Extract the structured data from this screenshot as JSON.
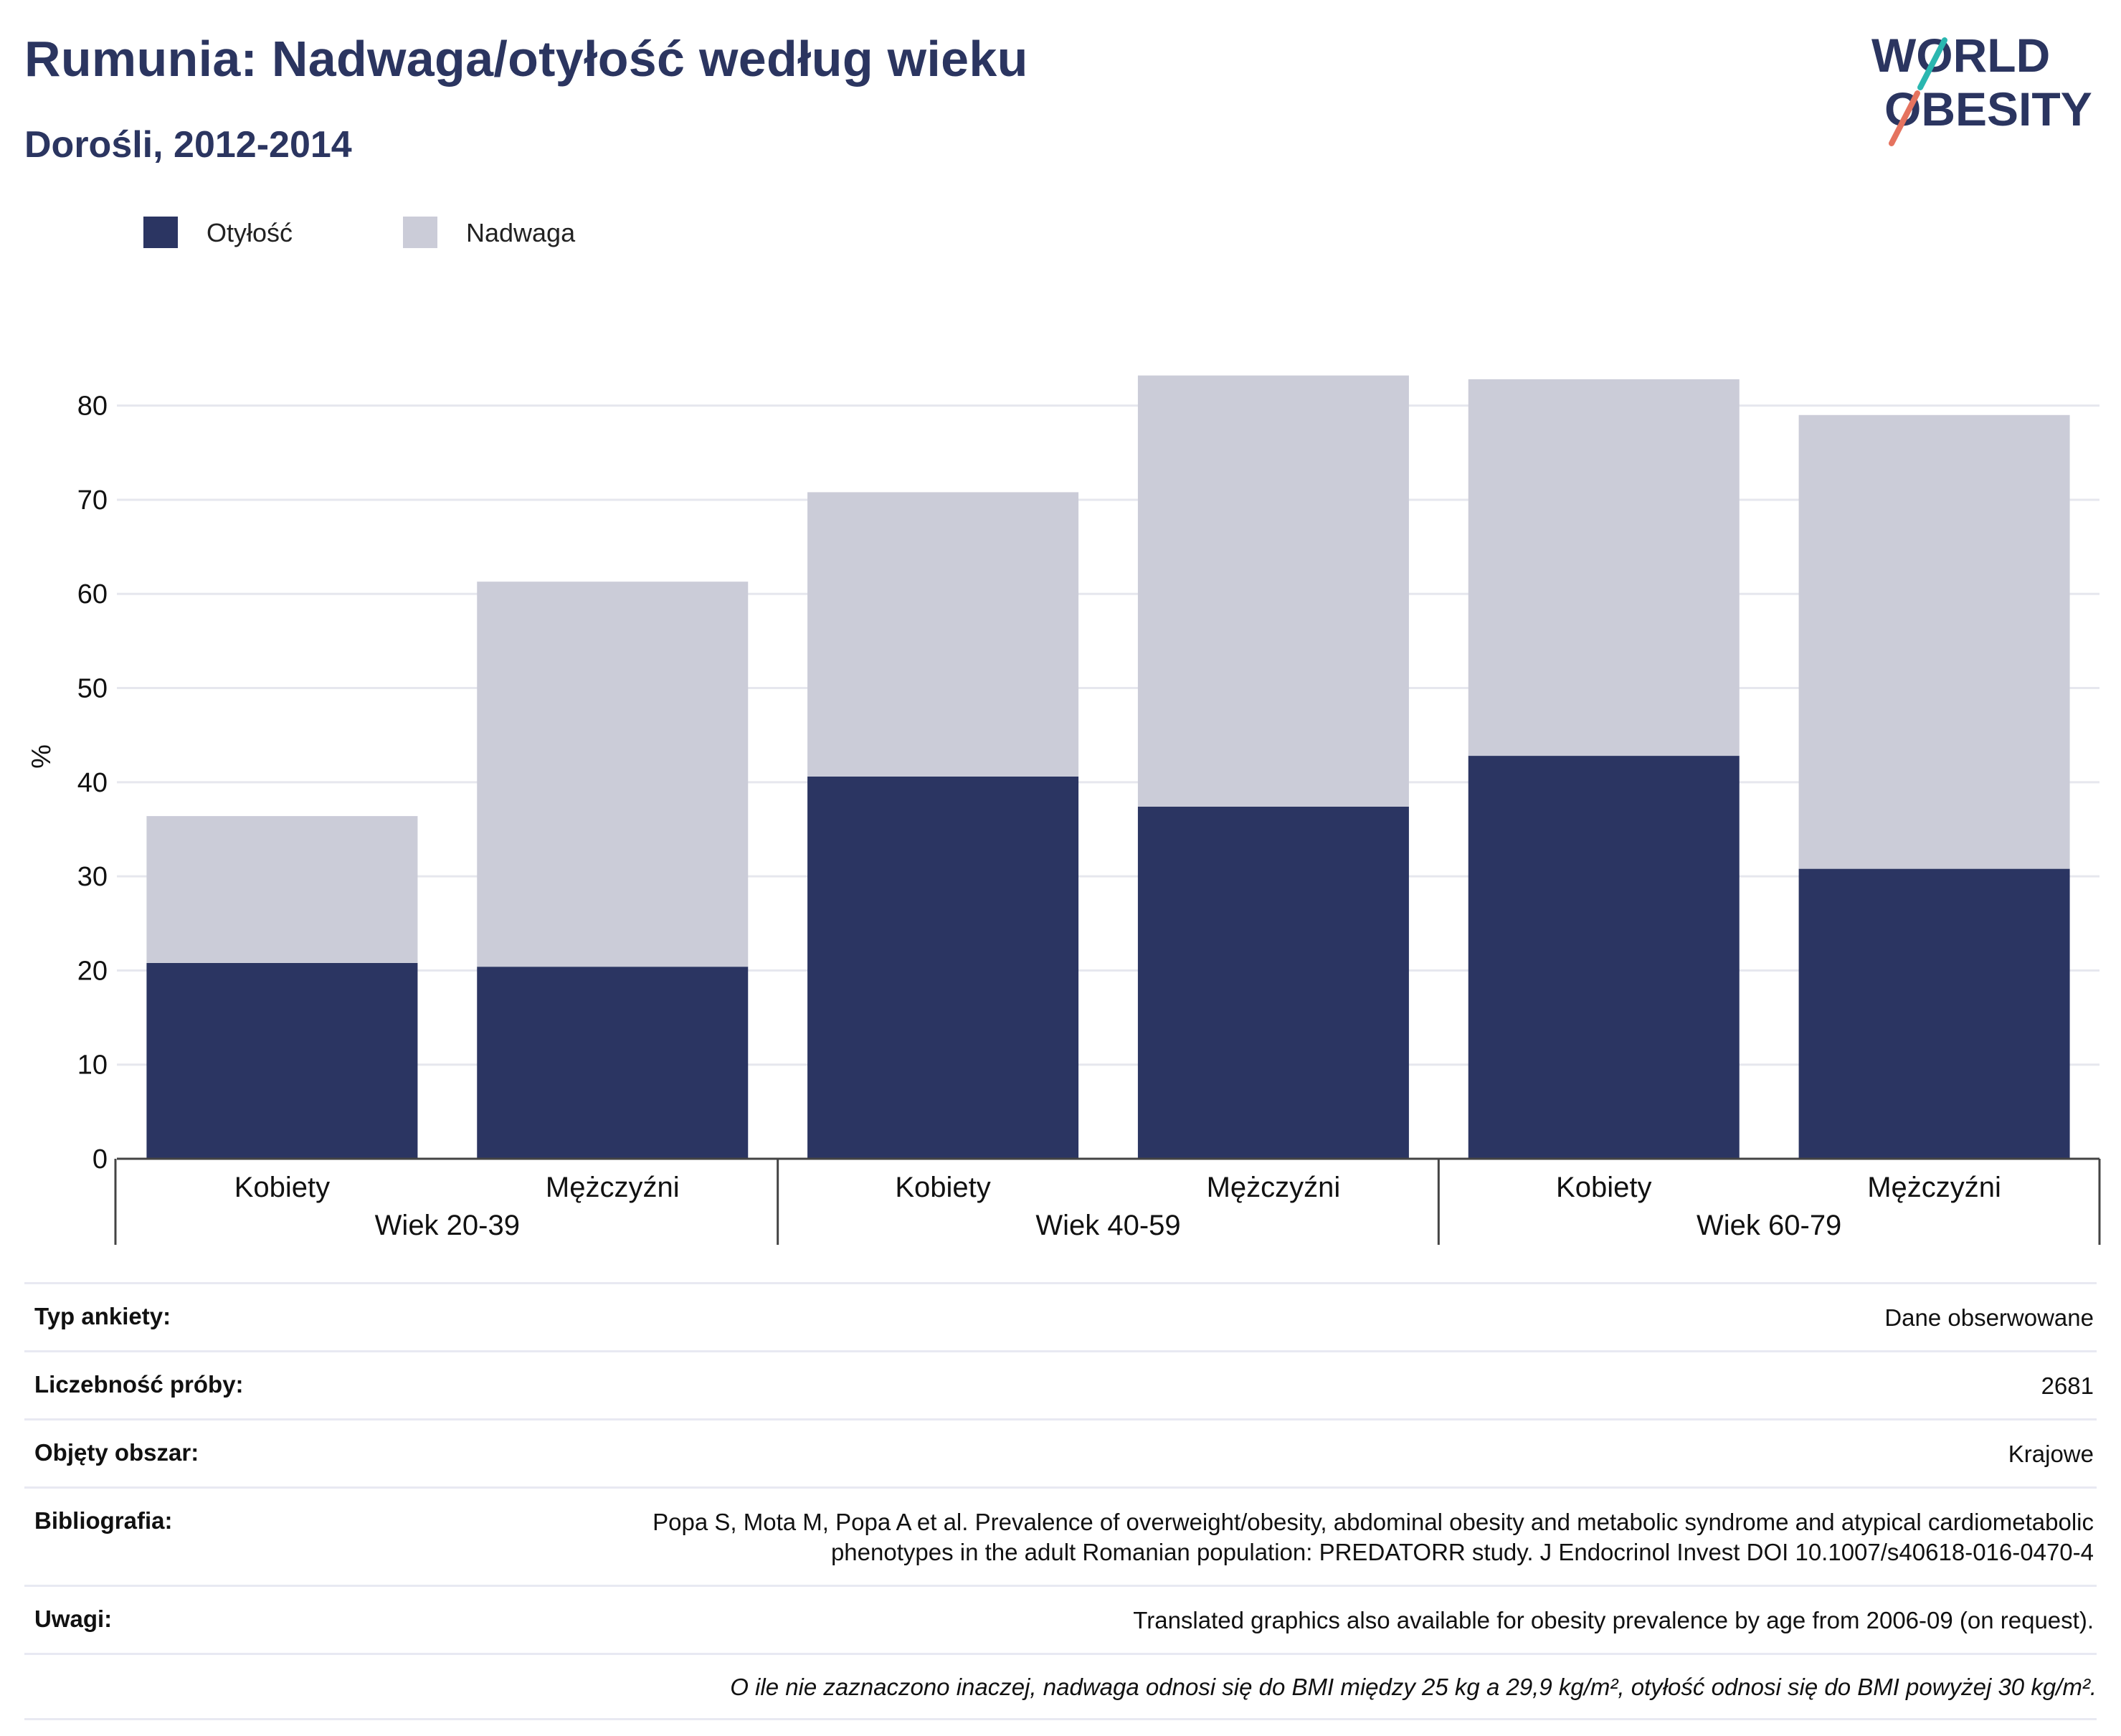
{
  "header": {
    "title": "Rumunia: Nadwaga/otyłość według wieku",
    "subtitle": "Dorośli, 2012-2014"
  },
  "logo": {
    "line1": "WORLD",
    "line2": "OBESITY",
    "colors": {
      "text": "#2b3560",
      "accent_teal": "#2ab7b0",
      "accent_red": "#e5735f"
    }
  },
  "chart_data": {
    "type": "bar",
    "stacked": true,
    "ylabel": "%",
    "ylim": [
      0,
      85
    ],
    "yticks": [
      0,
      10,
      20,
      30,
      40,
      50,
      60,
      70,
      80
    ],
    "grid": true,
    "legend_position": "top-left",
    "groups": [
      {
        "label": "Wiek 20-39",
        "categories": [
          "Kobiety",
          "Mężczyźni"
        ]
      },
      {
        "label": "Wiek 40-59",
        "categories": [
          "Kobiety",
          "Mężczyźni"
        ]
      },
      {
        "label": "Wiek 60-79",
        "categories": [
          "Kobiety",
          "Mężczyźni"
        ]
      }
    ],
    "categories": [
      "Kobiety",
      "Mężczyźni",
      "Kobiety",
      "Mężczyźni",
      "Kobiety",
      "Mężczyźni"
    ],
    "series": [
      {
        "name": "Otyłość",
        "color": "#2b3562",
        "values": [
          20.8,
          20.4,
          40.6,
          37.4,
          42.8,
          30.8
        ]
      },
      {
        "name": "Nadwaga",
        "color": "#cbccd8",
        "values": [
          15.6,
          40.9,
          30.2,
          45.8,
          40.0,
          48.2
        ]
      }
    ]
  },
  "info": {
    "rows": [
      {
        "label": "Typ ankiety:",
        "value": "Dane obserwowane"
      },
      {
        "label": "Liczebność próby:",
        "value": "2681"
      },
      {
        "label": "Objęty obszar:",
        "value": "Krajowe"
      },
      {
        "label": "Bibliografia:",
        "value": "Popa S, Mota M, Popa A et al. Prevalence of overweight/obesity, abdominal obesity and metabolic syndrome and atypical cardiometabolic phenotypes in the adult Romanian population: PREDATORR study. J Endocrinol Invest DOI 10.1007/s40618-016-0470-4"
      },
      {
        "label": "Uwagi:",
        "value": "Translated graphics also available for obesity prevalence by age from 2006-09 (on request)."
      }
    ],
    "note": "O ile nie zaznaczono inaczej, nadwaga odnosi się do BMI między 25 kg a 29,9 kg/m², otyłość odnosi się do BMI powyżej 30 kg/m²."
  }
}
